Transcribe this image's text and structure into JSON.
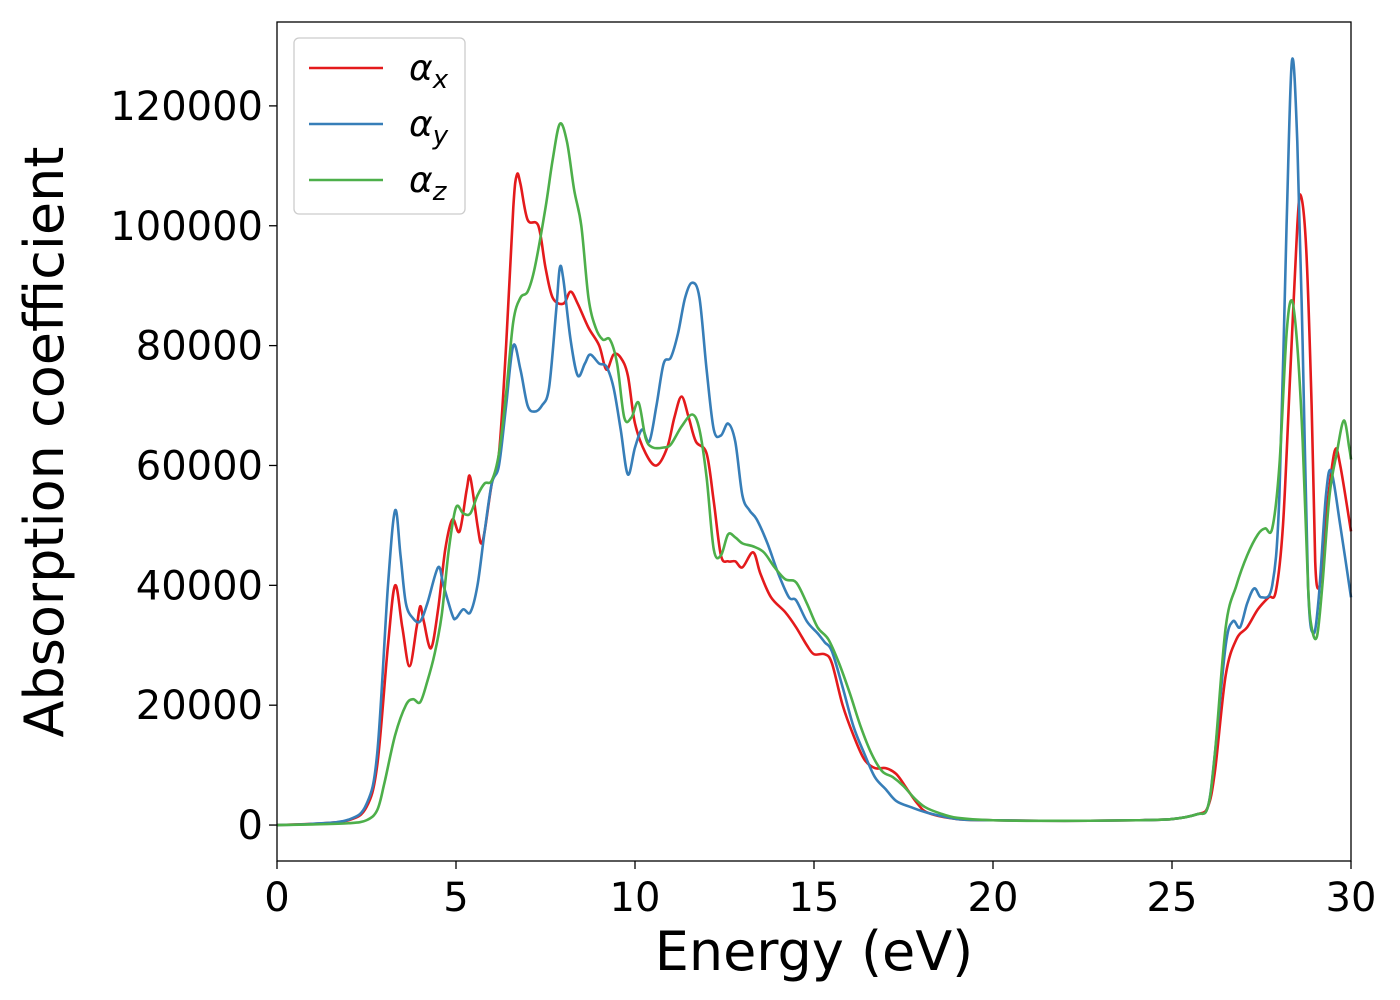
{
  "chart_data": {
    "type": "line",
    "xlabel": "Energy (eV)",
    "ylabel": "Absorption coefficient",
    "xlim": [
      0,
      30
    ],
    "ylim": [
      -6000,
      134000
    ],
    "x_ticks": [
      "0",
      "5",
      "10",
      "15",
      "20",
      "25",
      "30"
    ],
    "y_ticks": [
      "0",
      "20000",
      "40000",
      "60000",
      "80000",
      "100000",
      "120000"
    ],
    "grid": false,
    "legend_position": "top-left",
    "series": [
      {
        "name": "α",
        "subscript": "x",
        "color": "#e41a1c",
        "points": [
          [
            0,
            0
          ],
          [
            1,
            200
          ],
          [
            2,
            800
          ],
          [
            2.5,
            3000
          ],
          [
            2.8,
            10000
          ],
          [
            3.1,
            30000
          ],
          [
            3.3,
            40000
          ],
          [
            3.5,
            33000
          ],
          [
            3.7,
            26500
          ],
          [
            3.9,
            33000
          ],
          [
            4.0,
            36500
          ],
          [
            4.1,
            34000
          ],
          [
            4.3,
            29500
          ],
          [
            4.5,
            36000
          ],
          [
            4.7,
            46000
          ],
          [
            4.9,
            51000
          ],
          [
            5.1,
            49000
          ],
          [
            5.3,
            56000
          ],
          [
            5.4,
            58000
          ],
          [
            5.6,
            50000
          ],
          [
            5.7,
            47000
          ],
          [
            5.8,
            49000
          ],
          [
            6.0,
            57000
          ],
          [
            6.2,
            62000
          ],
          [
            6.4,
            80000
          ],
          [
            6.6,
            103000
          ],
          [
            6.7,
            108500
          ],
          [
            6.8,
            107000
          ],
          [
            7.0,
            101000
          ],
          [
            7.3,
            100000
          ],
          [
            7.5,
            93000
          ],
          [
            7.7,
            88000
          ],
          [
            8.0,
            87000
          ],
          [
            8.2,
            89000
          ],
          [
            8.4,
            87000
          ],
          [
            8.7,
            83000
          ],
          [
            9.0,
            80000
          ],
          [
            9.2,
            76000
          ],
          [
            9.4,
            78500
          ],
          [
            9.6,
            78000
          ],
          [
            9.8,
            75000
          ],
          [
            10.0,
            67000
          ],
          [
            10.3,
            62000
          ],
          [
            10.6,
            60000
          ],
          [
            10.9,
            63000
          ],
          [
            11.1,
            68000
          ],
          [
            11.3,
            71500
          ],
          [
            11.5,
            68000
          ],
          [
            11.7,
            64000
          ],
          [
            12.0,
            62000
          ],
          [
            12.2,
            54000
          ],
          [
            12.4,
            45000
          ],
          [
            12.6,
            44000
          ],
          [
            12.8,
            44000
          ],
          [
            13.0,
            43000
          ],
          [
            13.3,
            45500
          ],
          [
            13.5,
            42000
          ],
          [
            13.8,
            38000
          ],
          [
            14.2,
            35500
          ],
          [
            14.5,
            33000
          ],
          [
            14.8,
            30000
          ],
          [
            15.0,
            28500
          ],
          [
            15.3,
            28500
          ],
          [
            15.5,
            27000
          ],
          [
            15.8,
            20000
          ],
          [
            16.1,
            15000
          ],
          [
            16.4,
            11000
          ],
          [
            16.7,
            9500
          ],
          [
            17.0,
            9500
          ],
          [
            17.3,
            8500
          ],
          [
            17.6,
            6000
          ],
          [
            17.9,
            3500
          ],
          [
            18.2,
            2000
          ],
          [
            19,
            1000
          ],
          [
            20,
            800
          ],
          [
            22,
            700
          ],
          [
            24,
            800
          ],
          [
            25,
            1000
          ],
          [
            25.7,
            1800
          ],
          [
            26.0,
            3000
          ],
          [
            26.2,
            9000
          ],
          [
            26.5,
            25000
          ],
          [
            26.8,
            31000
          ],
          [
            27.1,
            33000
          ],
          [
            27.4,
            36000
          ],
          [
            27.7,
            38000
          ],
          [
            27.9,
            39000
          ],
          [
            28.1,
            50000
          ],
          [
            28.3,
            75000
          ],
          [
            28.5,
            100000
          ],
          [
            28.6,
            105000
          ],
          [
            28.75,
            96000
          ],
          [
            28.9,
            70000
          ],
          [
            29.0,
            44000
          ],
          [
            29.1,
            39500
          ],
          [
            29.2,
            44000
          ],
          [
            29.35,
            54000
          ],
          [
            29.55,
            62500
          ],
          [
            29.7,
            60000
          ],
          [
            30,
            49000
          ]
        ]
      },
      {
        "name": "α",
        "subscript": "y",
        "color": "#377eb8",
        "points": [
          [
            0,
            0
          ],
          [
            1,
            200
          ],
          [
            2,
            900
          ],
          [
            2.5,
            3500
          ],
          [
            2.8,
            12000
          ],
          [
            3.1,
            40000
          ],
          [
            3.3,
            52500
          ],
          [
            3.45,
            45000
          ],
          [
            3.6,
            37000
          ],
          [
            3.8,
            34500
          ],
          [
            4.0,
            34000
          ],
          [
            4.2,
            37000
          ],
          [
            4.5,
            43000
          ],
          [
            4.65,
            40000
          ],
          [
            4.9,
            35000
          ],
          [
            5.0,
            34500
          ],
          [
            5.2,
            36000
          ],
          [
            5.4,
            35500
          ],
          [
            5.6,
            40000
          ],
          [
            5.8,
            49000
          ],
          [
            6.0,
            57000
          ],
          [
            6.2,
            60000
          ],
          [
            6.4,
            70000
          ],
          [
            6.6,
            80000
          ],
          [
            6.8,
            76000
          ],
          [
            7.0,
            70000
          ],
          [
            7.2,
            69000
          ],
          [
            7.4,
            70000
          ],
          [
            7.6,
            73000
          ],
          [
            7.8,
            86000
          ],
          [
            7.9,
            93000
          ],
          [
            8.0,
            91000
          ],
          [
            8.2,
            81000
          ],
          [
            8.4,
            75000
          ],
          [
            8.6,
            77000
          ],
          [
            8.75,
            78500
          ],
          [
            9.0,
            77000
          ],
          [
            9.2,
            76500
          ],
          [
            9.4,
            73000
          ],
          [
            9.6,
            66000
          ],
          [
            9.8,
            58500
          ],
          [
            10.0,
            63000
          ],
          [
            10.2,
            66000
          ],
          [
            10.4,
            64000
          ],
          [
            10.6,
            70000
          ],
          [
            10.8,
            77000
          ],
          [
            11.0,
            78000
          ],
          [
            11.2,
            82000
          ],
          [
            11.4,
            88000
          ],
          [
            11.6,
            90500
          ],
          [
            11.8,
            88000
          ],
          [
            12.0,
            76000
          ],
          [
            12.2,
            66000
          ],
          [
            12.4,
            65000
          ],
          [
            12.6,
            67000
          ],
          [
            12.8,
            64000
          ],
          [
            13.0,
            55000
          ],
          [
            13.2,
            52500
          ],
          [
            13.4,
            51000
          ],
          [
            13.7,
            47000
          ],
          [
            14.0,
            42000
          ],
          [
            14.3,
            38000
          ],
          [
            14.5,
            37500
          ],
          [
            14.8,
            34000
          ],
          [
            15.1,
            32000
          ],
          [
            15.3,
            30500
          ],
          [
            15.5,
            29000
          ],
          [
            15.8,
            23000
          ],
          [
            16.1,
            16500
          ],
          [
            16.4,
            12000
          ],
          [
            16.7,
            8000
          ],
          [
            17.0,
            6000
          ],
          [
            17.3,
            4000
          ],
          [
            17.7,
            3000
          ],
          [
            18.2,
            2000
          ],
          [
            19,
            1000
          ],
          [
            20,
            800
          ],
          [
            22,
            700
          ],
          [
            24,
            800
          ],
          [
            25,
            1000
          ],
          [
            25.7,
            1800
          ],
          [
            26.0,
            3000
          ],
          [
            26.2,
            12000
          ],
          [
            26.5,
            30000
          ],
          [
            26.7,
            34000
          ],
          [
            26.9,
            33000
          ],
          [
            27.1,
            37000
          ],
          [
            27.3,
            39500
          ],
          [
            27.5,
            38000
          ],
          [
            27.8,
            40000
          ],
          [
            28.0,
            55000
          ],
          [
            28.2,
            100000
          ],
          [
            28.35,
            127500
          ],
          [
            28.5,
            114000
          ],
          [
            28.65,
            80000
          ],
          [
            28.8,
            40000
          ],
          [
            28.95,
            32000
          ],
          [
            29.1,
            38000
          ],
          [
            29.3,
            55000
          ],
          [
            29.45,
            59000
          ],
          [
            29.7,
            50000
          ],
          [
            30,
            38000
          ]
        ]
      },
      {
        "name": "α",
        "subscript": "z",
        "color": "#4daf4a",
        "points": [
          [
            0,
            0
          ],
          [
            1,
            100
          ],
          [
            2,
            300
          ],
          [
            2.5,
            800
          ],
          [
            2.8,
            2500
          ],
          [
            3.0,
            7000
          ],
          [
            3.3,
            15000
          ],
          [
            3.6,
            20000
          ],
          [
            3.8,
            21000
          ],
          [
            4.0,
            20500
          ],
          [
            4.2,
            24000
          ],
          [
            4.4,
            28500
          ],
          [
            4.6,
            35000
          ],
          [
            4.8,
            46000
          ],
          [
            5.0,
            53000
          ],
          [
            5.2,
            52000
          ],
          [
            5.4,
            52000
          ],
          [
            5.6,
            55000
          ],
          [
            5.8,
            57000
          ],
          [
            6.0,
            57500
          ],
          [
            6.2,
            62000
          ],
          [
            6.4,
            72000
          ],
          [
            6.6,
            84000
          ],
          [
            6.8,
            88000
          ],
          [
            7.0,
            89000
          ],
          [
            7.2,
            93000
          ],
          [
            7.5,
            103000
          ],
          [
            7.7,
            111000
          ],
          [
            7.9,
            117000
          ],
          [
            8.1,
            114000
          ],
          [
            8.3,
            106000
          ],
          [
            8.5,
            100000
          ],
          [
            8.7,
            88000
          ],
          [
            8.9,
            83000
          ],
          [
            9.1,
            81000
          ],
          [
            9.3,
            81000
          ],
          [
            9.5,
            77000
          ],
          [
            9.7,
            68000
          ],
          [
            9.9,
            68000
          ],
          [
            10.1,
            70500
          ],
          [
            10.3,
            64500
          ],
          [
            10.5,
            63000
          ],
          [
            10.8,
            63000
          ],
          [
            11.0,
            63500
          ],
          [
            11.3,
            66500
          ],
          [
            11.6,
            68500
          ],
          [
            11.8,
            66000
          ],
          [
            12.0,
            58000
          ],
          [
            12.2,
            46000
          ],
          [
            12.4,
            45000
          ],
          [
            12.6,
            48500
          ],
          [
            12.8,
            48000
          ],
          [
            13.0,
            47000
          ],
          [
            13.3,
            46500
          ],
          [
            13.6,
            45500
          ],
          [
            13.9,
            43000
          ],
          [
            14.2,
            41000
          ],
          [
            14.5,
            40500
          ],
          [
            14.8,
            37000
          ],
          [
            15.1,
            33000
          ],
          [
            15.4,
            31000
          ],
          [
            15.7,
            27000
          ],
          [
            16.0,
            22000
          ],
          [
            16.3,
            16500
          ],
          [
            16.6,
            12000
          ],
          [
            16.9,
            9000
          ],
          [
            17.2,
            8000
          ],
          [
            17.5,
            6500
          ],
          [
            17.8,
            4500
          ],
          [
            18.1,
            3000
          ],
          [
            18.5,
            2000
          ],
          [
            19,
            1200
          ],
          [
            20,
            800
          ],
          [
            22,
            700
          ],
          [
            24,
            800
          ],
          [
            25,
            1000
          ],
          [
            25.7,
            1800
          ],
          [
            26.0,
            3000
          ],
          [
            26.2,
            12000
          ],
          [
            26.5,
            33000
          ],
          [
            26.8,
            40000
          ],
          [
            27.1,
            45000
          ],
          [
            27.4,
            48500
          ],
          [
            27.6,
            49500
          ],
          [
            27.8,
            49500
          ],
          [
            28.0,
            60000
          ],
          [
            28.2,
            82000
          ],
          [
            28.35,
            87500
          ],
          [
            28.5,
            80000
          ],
          [
            28.65,
            64000
          ],
          [
            28.8,
            40000
          ],
          [
            28.9,
            33000
          ],
          [
            29.05,
            31500
          ],
          [
            29.2,
            40000
          ],
          [
            29.4,
            55000
          ],
          [
            29.6,
            62000
          ],
          [
            29.8,
            67500
          ],
          [
            29.95,
            63000
          ],
          [
            30,
            61000
          ]
        ]
      }
    ]
  }
}
